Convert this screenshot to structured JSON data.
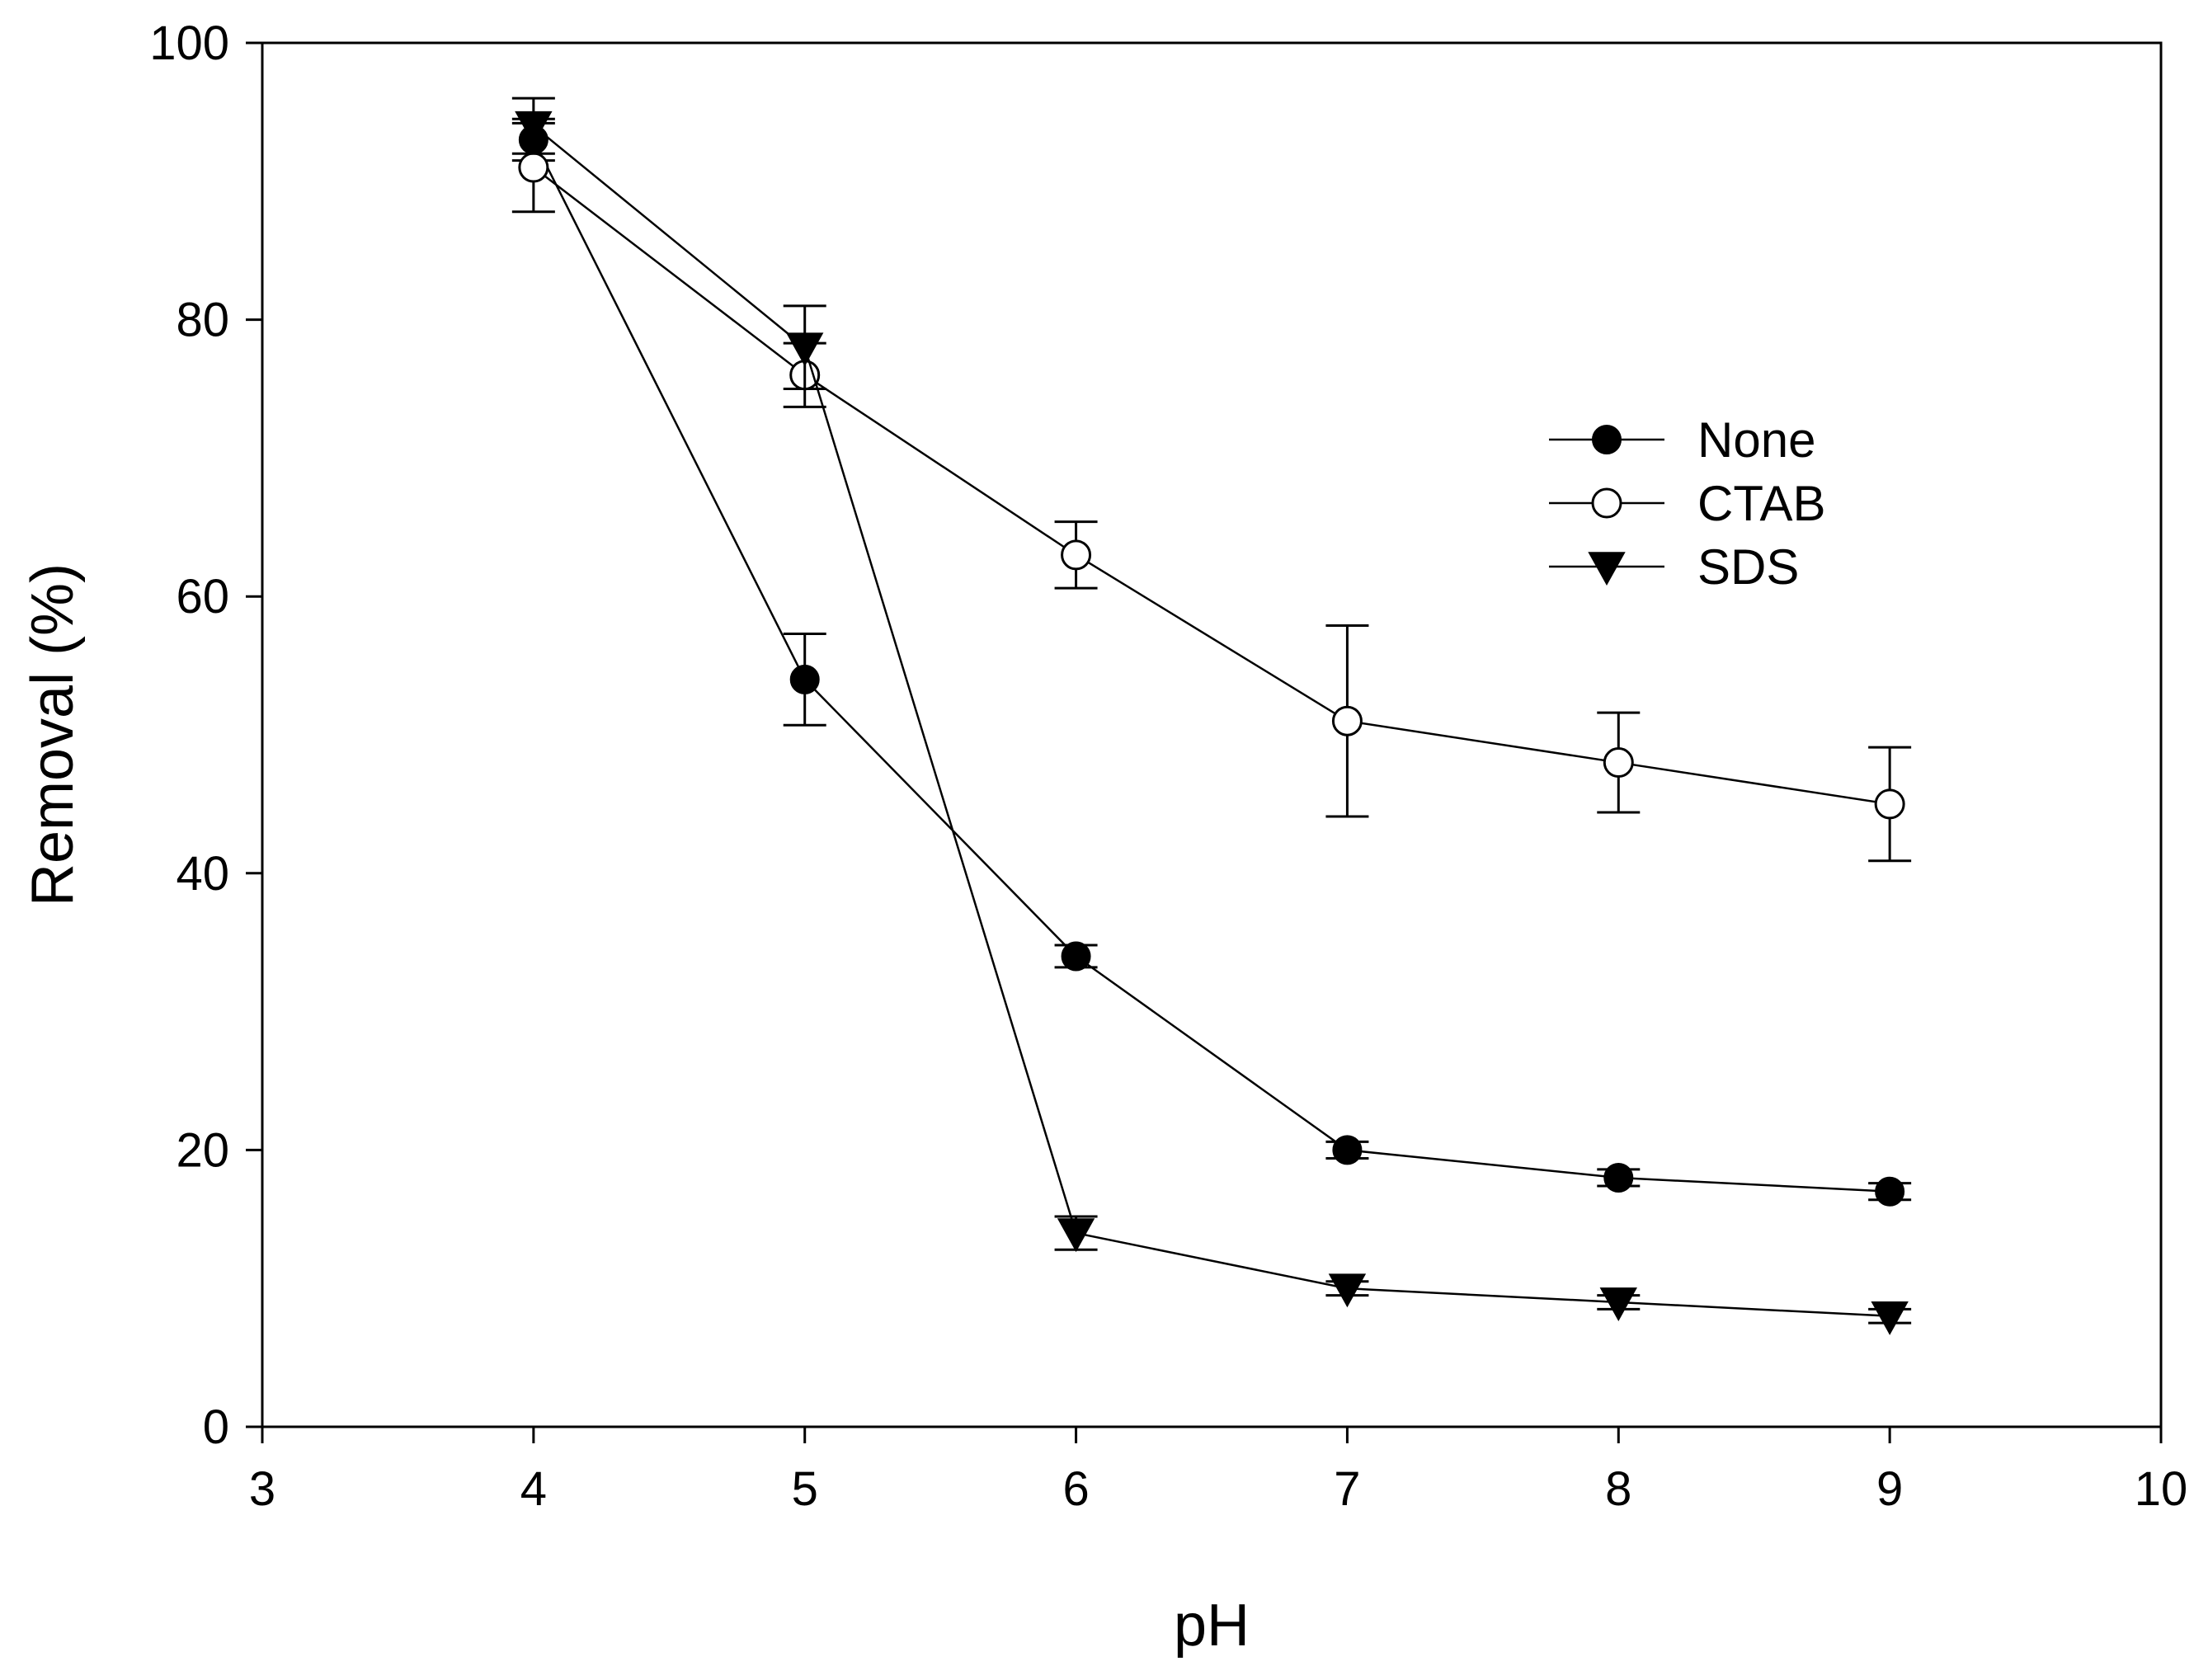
{
  "chart_data": {
    "type": "line",
    "title": "",
    "xlabel": "pH",
    "ylabel": "Removal (%)",
    "xlim": [
      3,
      10
    ],
    "ylim": [
      0,
      100
    ],
    "xticks": [
      3,
      4,
      5,
      6,
      7,
      8,
      9,
      10
    ],
    "yticks": [
      0,
      20,
      40,
      60,
      80,
      100
    ],
    "grid": false,
    "legend_position": "upper-right",
    "series": [
      {
        "name": "None",
        "marker": "filled-circle",
        "x": [
          4,
          5,
          6,
          7,
          8,
          9
        ],
        "y": [
          93,
          54,
          34,
          20,
          18,
          17
        ],
        "error": [
          1.5,
          3.3,
          0.8,
          0.6,
          0.6,
          0.6
        ]
      },
      {
        "name": "CTAB",
        "marker": "open-circle",
        "x": [
          4,
          5,
          6,
          7,
          8,
          9
        ],
        "y": [
          91,
          76,
          63,
          51,
          48,
          45
        ],
        "error": [
          3.2,
          2.3,
          2.4,
          6.9,
          3.6,
          4.1
        ]
      },
      {
        "name": "SDS",
        "marker": "filled-triangle-down",
        "x": [
          4,
          5,
          6,
          7,
          8,
          9
        ],
        "y": [
          94,
          78,
          14,
          10,
          9,
          8
        ],
        "error": [
          2.0,
          3.0,
          1.2,
          0.5,
          0.5,
          0.5
        ]
      }
    ]
  }
}
